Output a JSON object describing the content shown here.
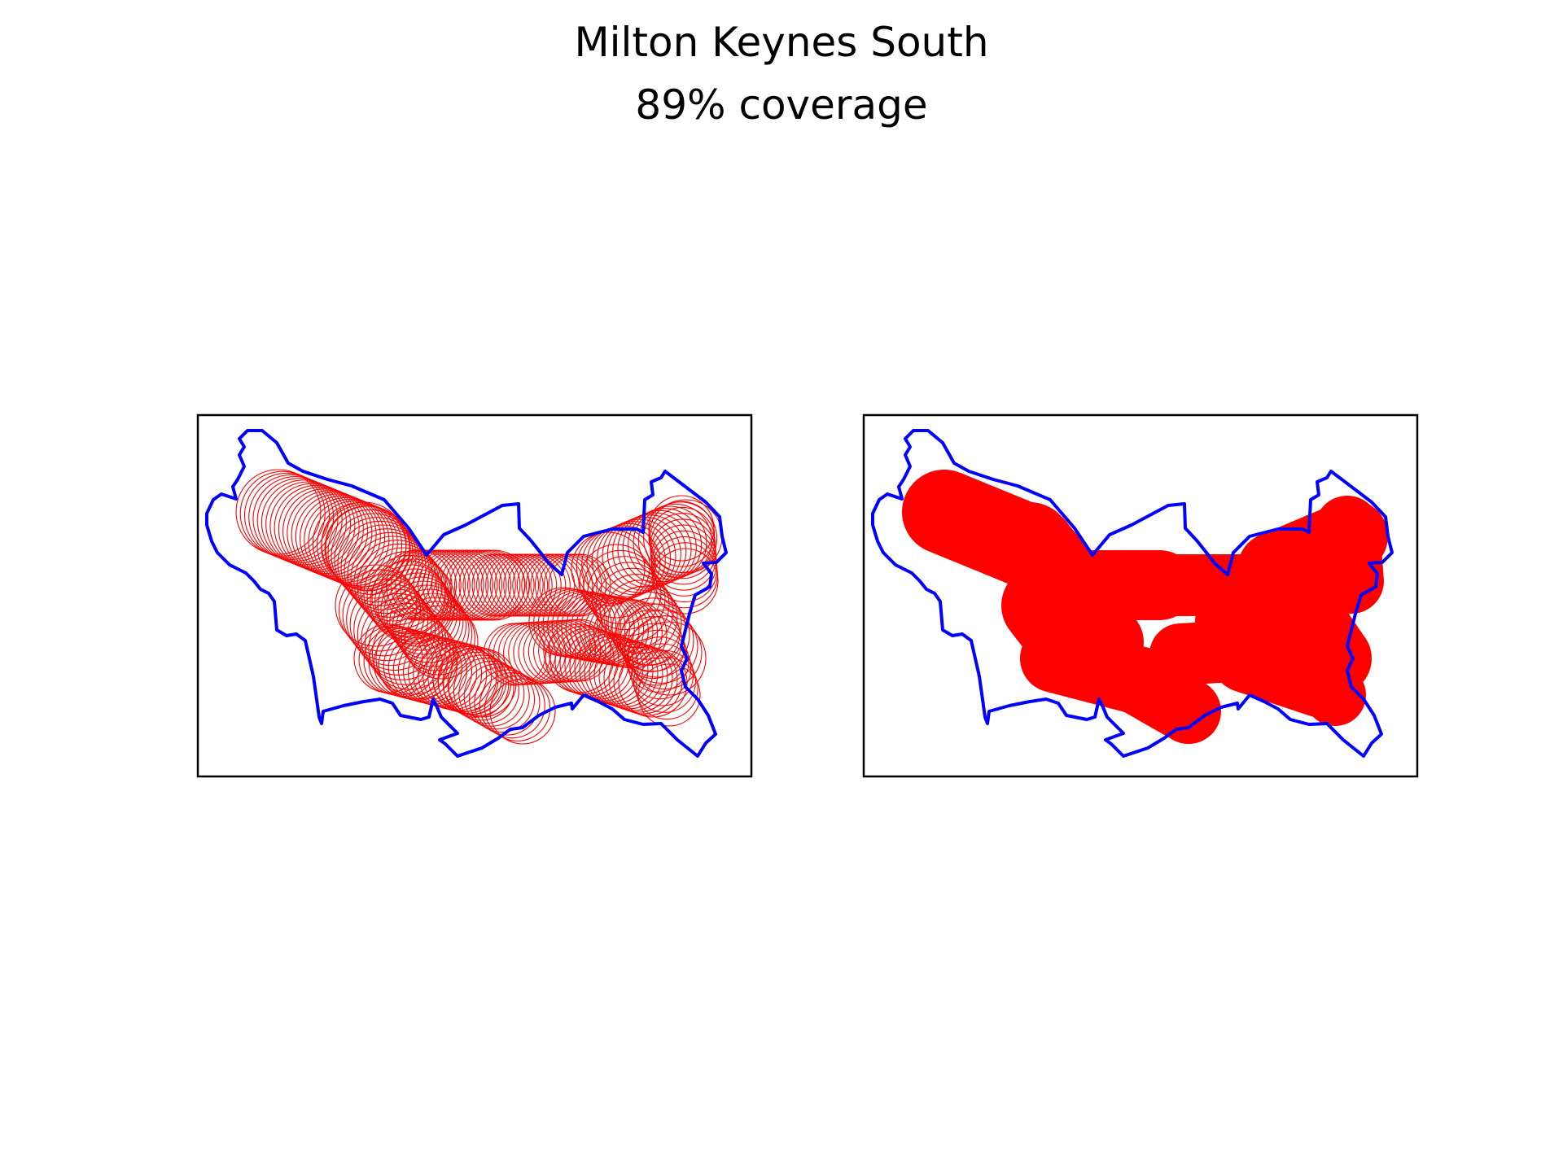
{
  "title": "Milton Keynes South",
  "subtitle": "89% coverage",
  "colors": {
    "boundary": "#0000ff",
    "coverage": "#ff0000",
    "frame": "#000000",
    "background": "#ffffff"
  },
  "panels": [
    {
      "id": "left",
      "style": "outlined-circles"
    },
    {
      "id": "right",
      "style": "filled-union"
    }
  ]
}
